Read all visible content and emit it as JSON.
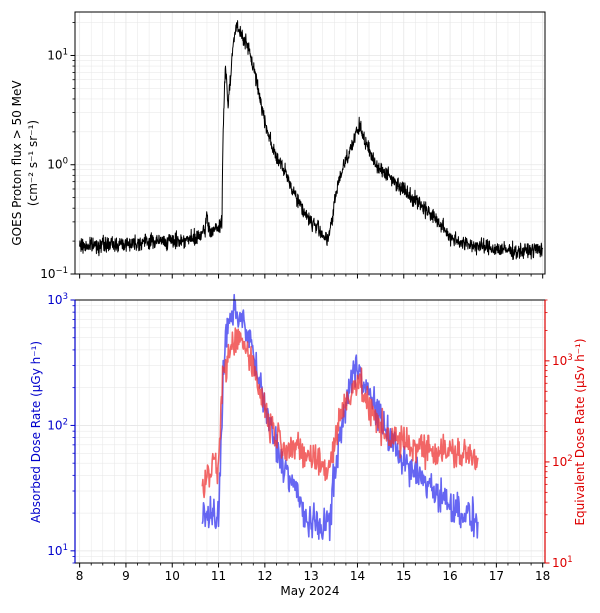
{
  "chart_data": [
    {
      "type": "line",
      "id": "top",
      "ylabel_line1": "GOES Proton flux > 50 MeV",
      "ylabel_line2": "(cm⁻² s⁻¹ sr⁻¹)",
      "yscale": "log",
      "ylim": [
        0.1,
        25
      ],
      "xlim": [
        7.9,
        18.05
      ],
      "yticks": [
        {
          "value": 0.1,
          "base": "10",
          "exp": "−1"
        },
        {
          "value": 1,
          "base": "10",
          "exp": "0"
        },
        {
          "value": 10,
          "base": "10",
          "exp": "1"
        }
      ],
      "grid": true,
      "series": [
        {
          "name": "GOES proton flux",
          "color": "#000000",
          "noise": 0.06,
          "x": [
            8.0,
            8.5,
            9.0,
            9.5,
            10.0,
            10.5,
            10.7,
            10.75,
            10.8,
            11.0,
            11.07,
            11.1,
            11.15,
            11.2,
            11.25,
            11.3,
            11.35,
            11.4,
            11.45,
            11.5,
            11.6,
            11.75,
            11.9,
            12.0,
            12.2,
            12.4,
            12.6,
            12.8,
            13.0,
            13.2,
            13.35,
            13.45,
            13.55,
            13.7,
            13.85,
            13.95,
            14.05,
            14.15,
            14.3,
            14.45,
            14.6,
            14.8,
            15.0,
            15.2,
            15.4,
            15.6,
            15.8,
            16.0,
            16.3,
            16.6,
            17.0,
            17.5,
            18.0
          ],
          "y": [
            0.18,
            0.185,
            0.19,
            0.2,
            0.2,
            0.21,
            0.24,
            0.35,
            0.25,
            0.26,
            0.3,
            2.0,
            8.5,
            3.5,
            6.0,
            11.0,
            16.0,
            18.5,
            16.0,
            15.5,
            13.0,
            8.0,
            4.0,
            2.5,
            1.3,
            0.9,
            0.6,
            0.4,
            0.3,
            0.25,
            0.2,
            0.3,
            0.6,
            1.0,
            1.4,
            1.8,
            2.3,
            1.7,
            1.2,
            0.95,
            0.85,
            0.7,
            0.6,
            0.5,
            0.42,
            0.35,
            0.28,
            0.22,
            0.19,
            0.18,
            0.17,
            0.16,
            0.17
          ]
        }
      ]
    },
    {
      "type": "line",
      "id": "bottom",
      "xlabel": "May 2024",
      "ylabel": "Absorbed Dose Rate (µGy h⁻¹)",
      "ylabel_color": "#0000cc",
      "yscale": "log",
      "ylim": [
        8,
        1000
      ],
      "yticks": [
        {
          "value": 10,
          "base": "10",
          "exp": "1"
        },
        {
          "value": 100,
          "base": "10",
          "exp": "2"
        },
        {
          "value": 1000,
          "base": "10",
          "exp": "3"
        }
      ],
      "y2label": "Equivalent Dose Rate (µSv h⁻¹)",
      "y2label_color": "#dd0000",
      "y2scale": "log",
      "y2lim": [
        10,
        4000
      ],
      "y2ticks": [
        {
          "value": 10,
          "base": "10",
          "exp": "1"
        },
        {
          "value": 100,
          "base": "10",
          "exp": "2"
        },
        {
          "value": 1000,
          "base": "10",
          "exp": "3"
        }
      ],
      "xlim": [
        7.9,
        18.05
      ],
      "xticks": [
        8,
        9,
        10,
        11,
        12,
        13,
        14,
        15,
        16,
        17,
        18
      ],
      "xtick_labels": [
        "8",
        "9",
        "10",
        "11",
        "12",
        "13",
        "14",
        "15",
        "16",
        "17",
        "18"
      ],
      "grid": true,
      "series": [
        {
          "name": "Absorbed dose rate",
          "axis": "left",
          "color": "#3333ee",
          "noise": 0.12,
          "x": [
            10.65,
            10.75,
            10.85,
            10.95,
            11.0,
            11.05,
            11.1,
            11.15,
            11.2,
            11.3,
            11.4,
            11.5,
            11.6,
            11.7,
            11.8,
            11.9,
            12.0,
            12.1,
            12.2,
            12.3,
            12.4,
            12.5,
            12.6,
            12.7,
            12.8,
            12.9,
            13.0,
            13.2,
            13.4,
            13.5,
            13.6,
            13.7,
            13.8,
            13.9,
            14.0,
            14.1,
            14.2,
            14.3,
            14.5,
            14.7,
            14.9,
            15.1,
            15.3,
            15.5,
            15.7,
            15.9,
            16.1,
            16.3,
            16.5,
            16.6
          ],
          "y": [
            17,
            20,
            22,
            18,
            17,
            60,
            250,
            450,
            600,
            750,
            800,
            700,
            600,
            450,
            300,
            200,
            140,
            100,
            80,
            60,
            50,
            40,
            35,
            28,
            22,
            18,
            16,
            16,
            17,
            40,
            70,
            120,
            180,
            250,
            300,
            260,
            200,
            160,
            110,
            80,
            60,
            45,
            40,
            35,
            30,
            25,
            22,
            20,
            18,
            17
          ]
        },
        {
          "name": "Equivalent dose rate",
          "axis": "right",
          "color": "#ee3333",
          "noise": 0.14,
          "x": [
            10.65,
            10.75,
            10.85,
            10.95,
            11.0,
            11.05,
            11.1,
            11.2,
            11.3,
            11.4,
            11.5,
            11.6,
            11.7,
            11.8,
            11.9,
            12.0,
            12.1,
            12.2,
            12.3,
            12.4,
            12.5,
            12.6,
            12.8,
            13.0,
            13.2,
            13.35,
            13.5,
            13.6,
            13.7,
            13.8,
            13.9,
            14.0,
            14.1,
            14.2,
            14.3,
            14.5,
            14.7,
            14.9,
            15.1,
            15.3,
            15.5,
            15.7,
            15.9,
            16.1,
            16.3,
            16.5,
            16.6
          ],
          "y": [
            50,
            70,
            90,
            80,
            90,
            300,
            700,
            1000,
            1400,
            1700,
            1600,
            1400,
            1100,
            700,
            500,
            350,
            250,
            200,
            180,
            150,
            150,
            140,
            120,
            110,
            100,
            80,
            150,
            250,
            350,
            450,
            550,
            650,
            500,
            400,
            300,
            220,
            180,
            160,
            150,
            140,
            140,
            130,
            130,
            120,
            120,
            110,
            110
          ]
        }
      ]
    }
  ]
}
